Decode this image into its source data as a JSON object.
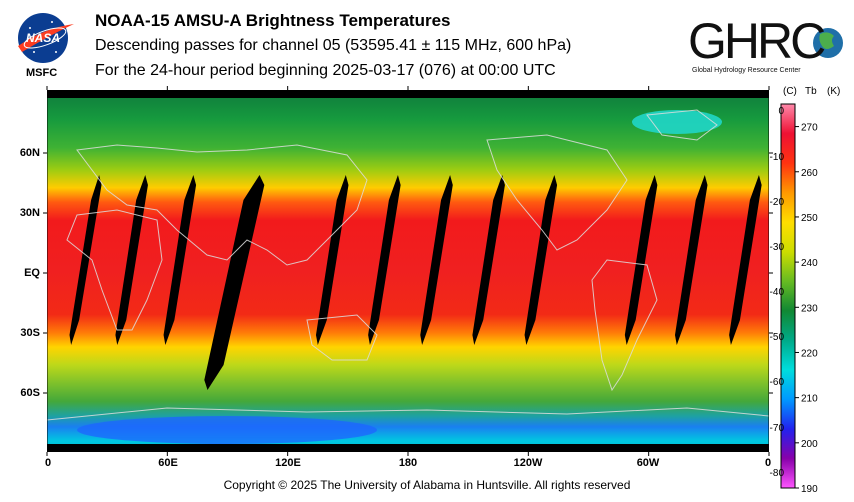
{
  "header": {
    "title": "NOAA-15 AMSU-A Brightness Temperatures",
    "subtitle": "Descending passes for channel 05 (53595.41 ± 115 MHz, 600 hPa)",
    "period": "For the 24-hour period beginning 2025-03-17 (076) at 00:00 UTC"
  },
  "logos": {
    "nasa_text": "NASA",
    "msfc_text": "MSFC",
    "ghrc_text": "GHRC",
    "ghrc_subtitle": "Global Hydrology Resource Center"
  },
  "map": {
    "lat_labels": [
      "60N",
      "30N",
      "EQ",
      "30S",
      "60S"
    ],
    "lon_labels": [
      "0",
      "60E",
      "120E",
      "180",
      "120W",
      "60W",
      "0"
    ],
    "data_gaps": [
      {
        "center_lon": 19,
        "width_deg": 8
      },
      {
        "center_lon": 42,
        "width_deg": 9
      },
      {
        "center_lon": 66,
        "width_deg": 9
      },
      {
        "center_lon": 93,
        "width_deg": 16
      },
      {
        "center_lon": 142,
        "width_deg": 9
      },
      {
        "center_lon": 168,
        "width_deg": 9
      },
      {
        "center_lon": 194,
        "width_deg": 9
      },
      {
        "center_lon": 220,
        "width_deg": 9
      },
      {
        "center_lon": 246,
        "width_deg": 9
      },
      {
        "center_lon": 296,
        "width_deg": 9
      },
      {
        "center_lon": 321,
        "width_deg": 9
      },
      {
        "center_lon": 348,
        "width_deg": 9
      }
    ]
  },
  "colorbar": {
    "celsius_header": "(C)",
    "tb_header": "Tb",
    "kelvin_header": "(K)",
    "celsius_ticks": [
      "0",
      "-10",
      "-20",
      "-30",
      "-40",
      "-50",
      "-60",
      "-70",
      "-80"
    ],
    "kelvin_ticks": [
      "270",
      "260",
      "250",
      "240",
      "230",
      "220",
      "210",
      "200",
      "190"
    ],
    "range_k": [
      190,
      275
    ],
    "colors": [
      "#ff55ff",
      "#8800aa",
      "#2222ee",
      "#0099ff",
      "#00dddd",
      "#00aa88",
      "#118833",
      "#66bb22",
      "#ccdd00",
      "#ffdd00",
      "#ff9900",
      "#ff3311",
      "#ee1133",
      "#ff88aa"
    ]
  },
  "footer": {
    "copyright": "Copyright © 2025 The University of Alabama in Huntsville.  All rights reserved"
  }
}
